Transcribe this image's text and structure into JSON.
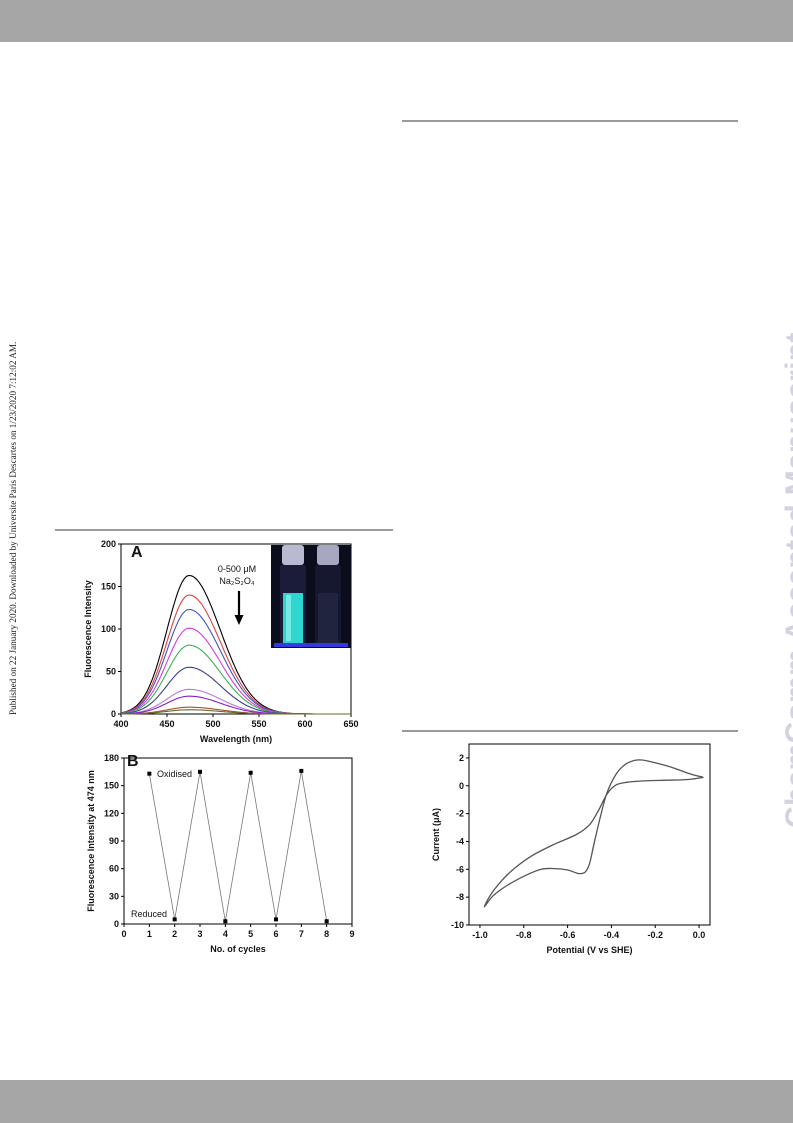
{
  "sidebar_note": "Published on 22 January 2020. Downloaded by Universite Paris Descartes on 1/23/2020 7:12:02 AM.",
  "watermark": "ChemComm Accepted Manuscript",
  "colors": {
    "header_bar": "#a6a6a6",
    "rule": "#9a9a9a",
    "watermark": "#d2d2e1"
  },
  "figure_left": {
    "panel_a": {
      "label": "A",
      "annotation_line1": "0-500 μM",
      "annotation_reagent": "Na₂S₂O₄",
      "photo": "vials-under-uv-photo"
    },
    "panel_b": {
      "label": "B",
      "annotation_top": "Oxidised",
      "annotation_bottom": "Reduced"
    }
  },
  "chart_data": [
    {
      "type": "line",
      "panel": "A",
      "xlabel": "Wavelength (nm)",
      "ylabel": "Fluorescence Intensity",
      "xlim": [
        400,
        650
      ],
      "ylim": [
        0,
        200
      ],
      "xticks": [
        400,
        450,
        500,
        550,
        600,
        650
      ],
      "yticks": [
        0,
        50,
        100,
        150,
        200
      ],
      "peak_wavelength": 474,
      "series": [
        {
          "color": "#000000",
          "peak": 163
        },
        {
          "color": "#e0413c",
          "peak": 140
        },
        {
          "color": "#4155c4",
          "peak": 123
        },
        {
          "color": "#d23ed8",
          "peak": 101
        },
        {
          "color": "#3db34a",
          "peak": 81
        },
        {
          "color": "#3a3f8c",
          "peak": 55
        },
        {
          "color": "#b47cd6",
          "peak": 29
        },
        {
          "color": "#8a1fc8",
          "peak": 21
        },
        {
          "color": "#a0522d",
          "peak": 8
        },
        {
          "color": "#6a6a2a",
          "peak": 5
        }
      ]
    },
    {
      "type": "line",
      "panel": "B",
      "xlabel": "No. of cycles",
      "ylabel": "Fluorescence Intensity at 474 nm",
      "xlim": [
        0,
        9
      ],
      "ylim": [
        0,
        180
      ],
      "xticks": [
        0,
        1,
        2,
        3,
        4,
        5,
        6,
        7,
        8,
        9
      ],
      "yticks": [
        0,
        30,
        60,
        90,
        120,
        150,
        180
      ],
      "x": [
        1,
        2,
        3,
        4,
        5,
        6,
        7,
        8
      ],
      "y": [
        163,
        5,
        165,
        3,
        164,
        5,
        166,
        3
      ]
    },
    {
      "type": "line",
      "xlabel": "Potential (V vs SHE)",
      "ylabel": "Current (μA)",
      "xlim": [
        -1.05,
        0.05
      ],
      "ylim": [
        -10,
        3
      ],
      "xticks": [
        -1.0,
        -0.8,
        -0.6,
        -0.4,
        -0.2,
        0.0
      ],
      "xtick_labels": [
        "-1.0",
        "-0.8",
        "-0.6",
        "-0.4",
        "-0.2",
        "0.0"
      ],
      "yticks": [
        -10,
        -8,
        -6,
        -4,
        -2,
        0,
        2
      ],
      "cv_curve": [
        [
          0.02,
          0.6
        ],
        [
          -0.05,
          0.9
        ],
        [
          -0.12,
          1.3
        ],
        [
          -0.2,
          1.65
        ],
        [
          -0.26,
          1.85
        ],
        [
          -0.3,
          1.8
        ],
        [
          -0.34,
          1.5
        ],
        [
          -0.38,
          0.8
        ],
        [
          -0.42,
          -0.5
        ],
        [
          -0.45,
          -2.2
        ],
        [
          -0.48,
          -4.2
        ],
        [
          -0.5,
          -5.6
        ],
        [
          -0.52,
          -6.2
        ],
        [
          -0.55,
          -6.3
        ],
        [
          -0.6,
          -6.05
        ],
        [
          -0.66,
          -5.95
        ],
        [
          -0.72,
          -6.0
        ],
        [
          -0.8,
          -6.5
        ],
        [
          -0.88,
          -7.2
        ],
        [
          -0.94,
          -7.9
        ],
        [
          -0.98,
          -8.7
        ],
        [
          -0.95,
          -7.8
        ],
        [
          -0.9,
          -6.8
        ],
        [
          -0.84,
          -5.9
        ],
        [
          -0.76,
          -5.0
        ],
        [
          -0.66,
          -4.2
        ],
        [
          -0.56,
          -3.5
        ],
        [
          -0.5,
          -2.8
        ],
        [
          -0.46,
          -1.8
        ],
        [
          -0.42,
          -0.6
        ],
        [
          -0.38,
          0.05
        ],
        [
          -0.33,
          0.25
        ],
        [
          -0.25,
          0.35
        ],
        [
          -0.15,
          0.4
        ],
        [
          -0.05,
          0.45
        ],
        [
          0.02,
          0.6
        ]
      ]
    }
  ]
}
